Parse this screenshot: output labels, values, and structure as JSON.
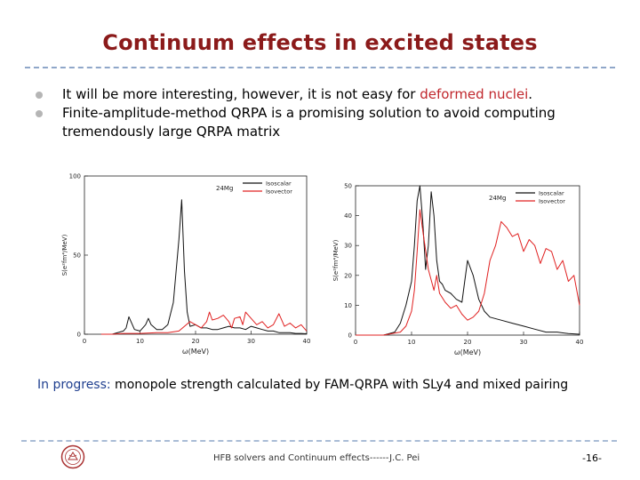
{
  "slide": {
    "title": "Continuum effects in excited states",
    "bullets": [
      {
        "text": "It will be more interesting, however,  it is not easy for ",
        "highlight": "deformed nuclei",
        "tail": "."
      },
      {
        "text": "Finite-amplitude-method QRPA is a promising solution to avoid computing tremendously large QRPA matrix"
      }
    ],
    "progress_label": "In progress:",
    "progress_text": " monopole strength calculated by FAM-QRPA with  SLy4 and mixed pairing",
    "footer": "HFB solvers and Continuum effects------J.C. Pei",
    "page_number": "-16-"
  },
  "colors": {
    "title": "#8b1a1a",
    "highlight": "#c0272d",
    "isoscalar": "#111111",
    "isovector": "#e02020",
    "progress_label": "#1f3f8f"
  },
  "chart_data": [
    {
      "type": "line",
      "nucleus": "24Mg",
      "ylabel": "S(e²fm⁴/MeV)",
      "xlabel": "ω(MeV)",
      "xlim": [
        0,
        40
      ],
      "ylim": [
        0,
        100
      ],
      "xticks": [
        0,
        10,
        20,
        30,
        40
      ],
      "yticks": [
        0,
        50,
        100
      ],
      "legend": [
        "Isoscalar",
        "Isovector"
      ],
      "series": [
        {
          "name": "Isoscalar",
          "x": [
            3,
            5,
            7,
            7.5,
            8,
            9,
            10,
            11,
            11.5,
            12,
            13,
            14,
            15,
            16,
            17,
            17.5,
            18,
            18.5,
            19,
            20,
            21,
            22,
            23,
            24,
            25,
            26,
            27,
            28,
            29,
            30,
            31,
            32,
            33,
            34,
            35,
            36,
            37,
            38,
            39,
            40
          ],
          "y": [
            0,
            0,
            2,
            4,
            11,
            3,
            2,
            6,
            10,
            6,
            3,
            3,
            6,
            20,
            60,
            85,
            40,
            14,
            5,
            6,
            4,
            4,
            3,
            3,
            4,
            5,
            4,
            4,
            3,
            5,
            4,
            3,
            2,
            2,
            1,
            1,
            1,
            0.5,
            0.5,
            0.3
          ]
        },
        {
          "name": "Isovector",
          "x": [
            3,
            5,
            7,
            10,
            13,
            15,
            17,
            18,
            19,
            20,
            21,
            22,
            22.5,
            23,
            24,
            25,
            26,
            26.5,
            27,
            28,
            28.5,
            29,
            30,
            31,
            32,
            33,
            34,
            35,
            36,
            37,
            38,
            39,
            40
          ],
          "y": [
            0,
            0,
            0.5,
            0.5,
            1,
            1,
            2,
            5,
            8,
            6,
            4,
            8,
            14,
            9,
            10,
            12,
            8,
            4,
            10,
            11,
            6,
            14,
            10,
            6,
            8,
            4,
            6,
            13,
            5,
            7,
            4,
            6,
            2
          ]
        }
      ]
    },
    {
      "type": "line",
      "nucleus": "24Mg",
      "ylabel": "S(e²fm⁴/MeV)",
      "xlabel": "ω(MeV)",
      "xlim": [
        0,
        40
      ],
      "ylim": [
        0,
        50
      ],
      "xticks": [
        0,
        10,
        20,
        30,
        40
      ],
      "yticks": [
        0,
        10,
        20,
        30,
        40,
        50
      ],
      "legend": [
        "Isoscalar",
        "Isovector"
      ],
      "series": [
        {
          "name": "Isoscalar",
          "x": [
            0,
            5,
            7,
            8,
            9,
            10,
            10.5,
            11,
            11.5,
            12,
            12.5,
            13,
            13.5,
            14,
            14.5,
            15,
            15.5,
            16,
            17,
            18,
            19,
            19.5,
            20,
            21,
            22,
            23,
            24,
            26,
            28,
            30,
            32,
            34,
            36,
            38,
            40
          ],
          "y": [
            0,
            0,
            1,
            4,
            10,
            18,
            30,
            45,
            52,
            38,
            22,
            30,
            48,
            40,
            25,
            18,
            17,
            15,
            14,
            12,
            11,
            18,
            25,
            20,
            12,
            8,
            6,
            5,
            4,
            3,
            2,
            1,
            1,
            0.5,
            0.3
          ]
        },
        {
          "name": "Isovector",
          "x": [
            0,
            5,
            8,
            9,
            10,
            10.5,
            11,
            11.5,
            12,
            13,
            14,
            14.5,
            15,
            16,
            17,
            18,
            19,
            20,
            21,
            22,
            23,
            24,
            25,
            26,
            27,
            28,
            29,
            30,
            31,
            32,
            33,
            34,
            35,
            36,
            37,
            38,
            39,
            40
          ],
          "y": [
            0,
            0,
            1,
            3,
            8,
            15,
            28,
            42,
            35,
            22,
            15,
            20,
            14,
            11,
            9,
            10,
            7,
            5,
            6,
            8,
            14,
            25,
            30,
            38,
            36,
            33,
            34,
            28,
            32,
            30,
            24,
            29,
            28,
            22,
            25,
            18,
            20,
            10
          ]
        }
      ]
    }
  ]
}
